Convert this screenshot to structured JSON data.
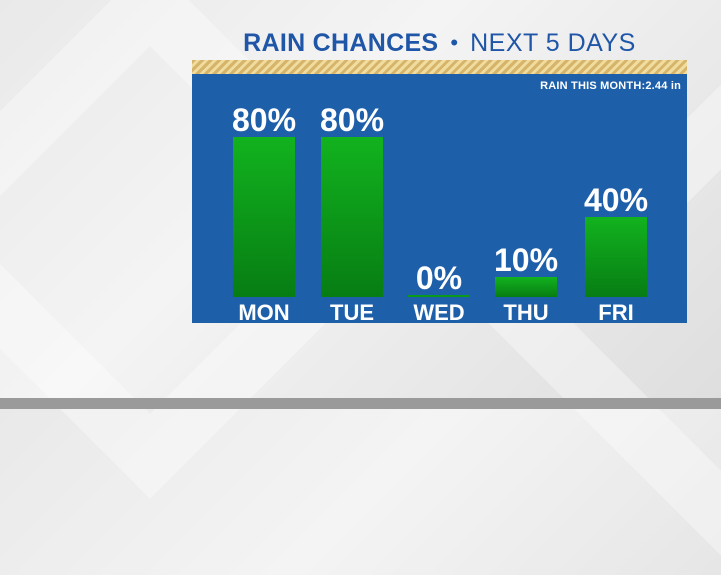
{
  "title": {
    "main": "RAIN CHANCES",
    "separator": "•",
    "sub": "NEXT 5 DAYS"
  },
  "rain_this_month": "RAIN THIS MONTH:2.44 in",
  "colors": {
    "panel": "#1e5fa9",
    "bar": "#0a9a1a",
    "title": "#1f56a8"
  },
  "chart_data": {
    "type": "bar",
    "categories": [
      "MON",
      "TUE",
      "WED",
      "THU",
      "FRI"
    ],
    "values": [
      80,
      80,
      0,
      10,
      40
    ],
    "value_labels": [
      "80%",
      "80%",
      "0%",
      "10%",
      "40%"
    ],
    "ylim": [
      0,
      100
    ],
    "grid": false
  }
}
